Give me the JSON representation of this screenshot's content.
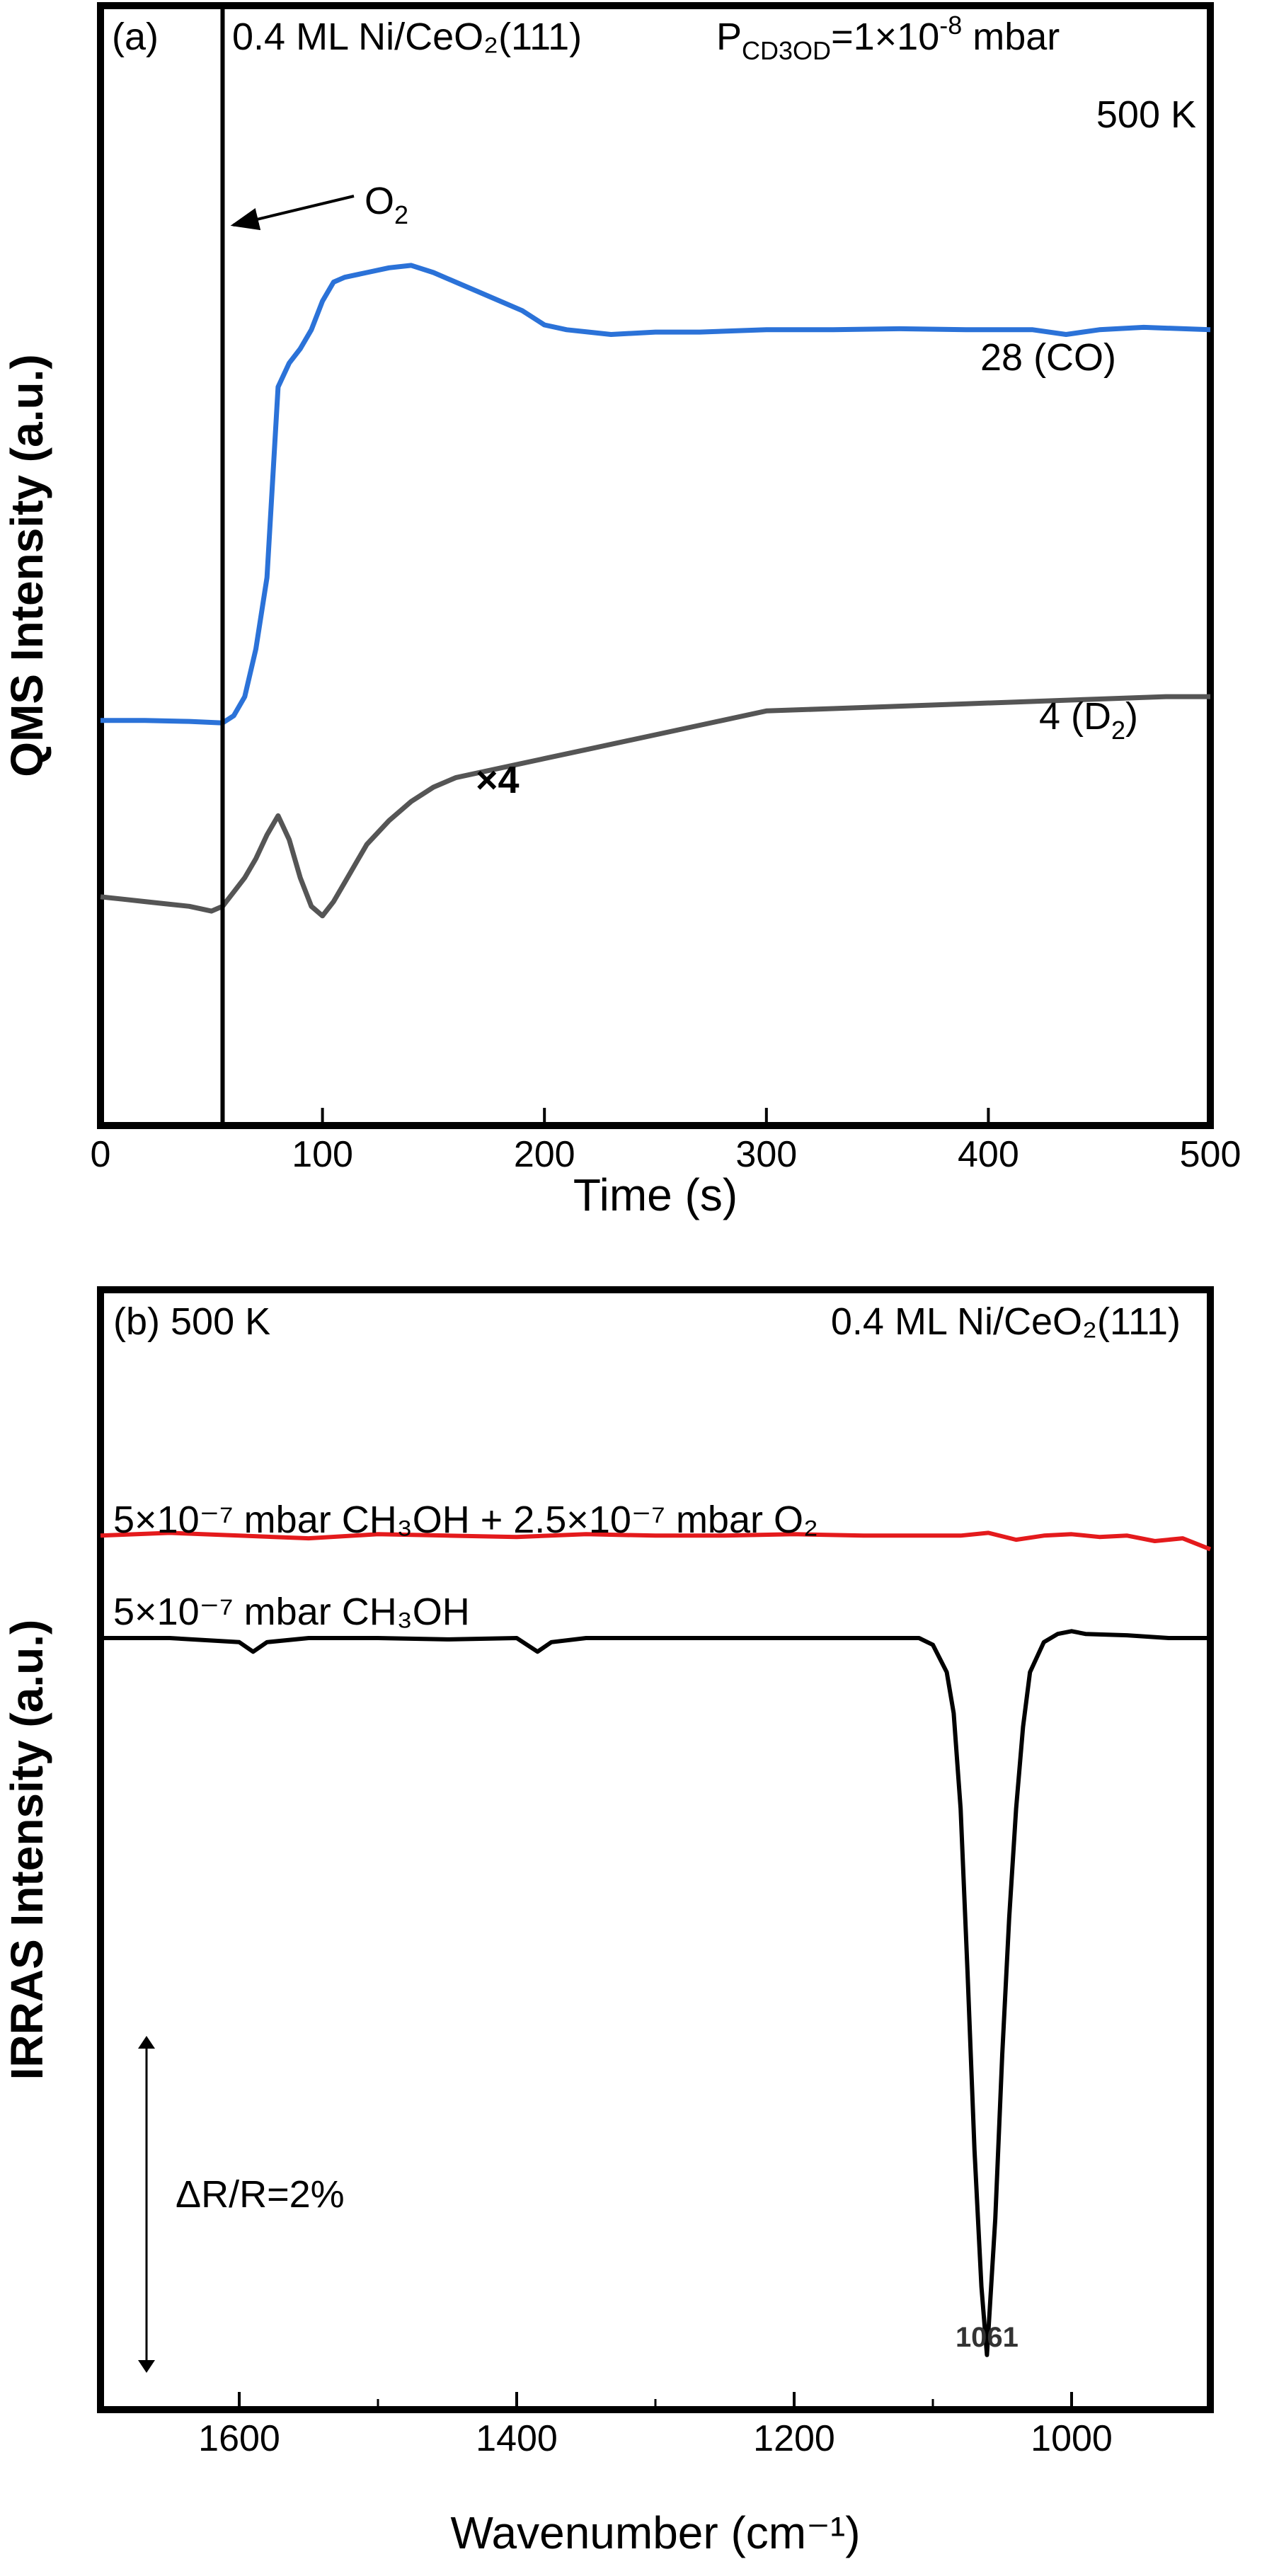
{
  "chart_data": [
    {
      "panel": "(a)",
      "type": "line",
      "xlabel": "Time (s)",
      "ylabel": "QMS Intensity (a.u.)",
      "xlim": [
        0,
        500
      ],
      "xticks": [
        0,
        100,
        200,
        300,
        400,
        500
      ],
      "y_ticks_shown": false,
      "grid": false,
      "annotations": {
        "sample": "0.4 ML Ni/CeO₂(111)",
        "pressure_prefix": "P",
        "pressure_sub": "CD3OD",
        "pressure_value": "=1×10",
        "pressure_exp": "-8",
        "pressure_unit": " mbar",
        "temperature": "500 K",
        "o2_label_base": "O",
        "o2_label_sub": "2",
        "o2_time": 55,
        "multiplier": "×4"
      },
      "series": [
        {
          "name_base": "28 (CO)",
          "color": "#2b72d8",
          "x": [
            0,
            20,
            40,
            55,
            60,
            65,
            70,
            75,
            80,
            85,
            90,
            95,
            100,
            105,
            110,
            120,
            130,
            140,
            150,
            160,
            170,
            180,
            190,
            200,
            210,
            220,
            230,
            250,
            270,
            300,
            330,
            360,
            390,
            420,
            435,
            450,
            470,
            500
          ],
          "y": [
            0.55,
            0.55,
            0.548,
            0.545,
            0.56,
            0.6,
            0.7,
            0.85,
            1.25,
            1.3,
            1.33,
            1.37,
            1.43,
            1.47,
            1.48,
            1.49,
            1.5,
            1.505,
            1.49,
            1.47,
            1.45,
            1.43,
            1.41,
            1.38,
            1.37,
            1.365,
            1.36,
            1.365,
            1.365,
            1.37,
            1.37,
            1.372,
            1.37,
            1.37,
            1.36,
            1.37,
            1.375,
            1.37
          ]
        },
        {
          "name_base": "4 (D",
          "name_sub": "2",
          "name_end": ")",
          "color": "#555555",
          "x": [
            0,
            10,
            20,
            30,
            40,
            50,
            55,
            60,
            65,
            70,
            75,
            80,
            85,
            90,
            95,
            100,
            105,
            110,
            115,
            120,
            130,
            140,
            150,
            160,
            170,
            180,
            200,
            220,
            250,
            280,
            300,
            330,
            360,
            390,
            420,
            450,
            480,
            500
          ],
          "y": [
            0.18,
            0.175,
            0.17,
            0.165,
            0.16,
            0.15,
            0.16,
            0.19,
            0.22,
            0.26,
            0.31,
            0.35,
            0.3,
            0.22,
            0.16,
            0.14,
            0.17,
            0.21,
            0.25,
            0.29,
            0.34,
            0.38,
            0.41,
            0.43,
            0.44,
            0.45,
            0.47,
            0.49,
            0.52,
            0.55,
            0.57,
            0.575,
            0.58,
            0.585,
            0.59,
            0.595,
            0.6,
            0.6
          ]
        }
      ]
    },
    {
      "panel": "(b)",
      "type": "line",
      "xlabel": "Wavenumber (cm⁻¹)",
      "ylabel": "IRRAS Intensity (a.u.)",
      "xlim": [
        1700,
        900
      ],
      "xticks": [
        1600,
        1400,
        1200,
        1000
      ],
      "y_ticks_shown": false,
      "grid": false,
      "annotations": {
        "panel_title": "(b) 500 K",
        "sample": "0.4 ML Ni/CeO₂(111)",
        "scale_bar": "ΔR/R=2%",
        "scale_bar_value_percent": 2,
        "peak_label": "1061",
        "peak_position": 1061
      },
      "series": [
        {
          "name": "5×10⁻⁷ mbar CH₃OH + 2.5×10⁻⁷ mbar O₂",
          "color": "#e41a1c",
          "x": [
            1700,
            1650,
            1600,
            1550,
            1500,
            1450,
            1400,
            1350,
            1300,
            1250,
            1200,
            1150,
            1100,
            1080,
            1060,
            1040,
            1020,
            1000,
            980,
            960,
            940,
            920,
            900
          ],
          "y": [
            0.0,
            0.002,
            0.0,
            -0.002,
            0.001,
            0.0,
            -0.001,
            0.001,
            0.0,
            0.0,
            0.001,
            0.0,
            0.0,
            0.0,
            0.002,
            -0.003,
            0.0,
            0.001,
            -0.001,
            0.0,
            -0.004,
            -0.002,
            -0.01
          ]
        },
        {
          "name": "5×10⁻⁷ mbar CH₃OH",
          "color": "#000000",
          "x": [
            1700,
            1650,
            1600,
            1590,
            1580,
            1550,
            1500,
            1450,
            1400,
            1385,
            1375,
            1350,
            1300,
            1250,
            1200,
            1150,
            1110,
            1100,
            1090,
            1085,
            1080,
            1075,
            1070,
            1065,
            1061,
            1055,
            1050,
            1045,
            1040,
            1035,
            1030,
            1020,
            1010,
            1000,
            990,
            960,
            930,
            900
          ],
          "y": [
            -0.075,
            -0.075,
            -0.078,
            -0.085,
            -0.078,
            -0.075,
            -0.075,
            -0.076,
            -0.075,
            -0.085,
            -0.078,
            -0.075,
            -0.075,
            -0.075,
            -0.075,
            -0.075,
            -0.075,
            -0.08,
            -0.1,
            -0.13,
            -0.2,
            -0.32,
            -0.45,
            -0.55,
            -0.6,
            -0.5,
            -0.38,
            -0.28,
            -0.2,
            -0.14,
            -0.1,
            -0.078,
            -0.072,
            -0.07,
            -0.072,
            -0.073,
            -0.075,
            -0.075
          ]
        }
      ]
    }
  ]
}
